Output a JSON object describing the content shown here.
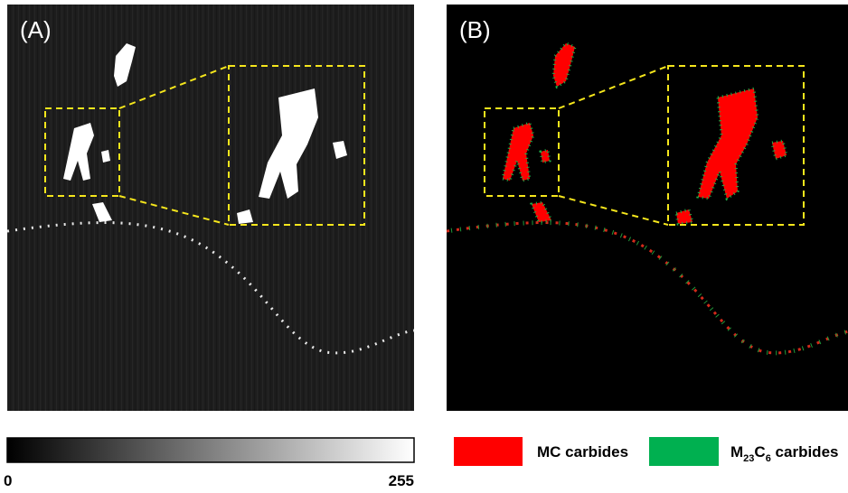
{
  "panels": [
    {
      "label": "(A)"
    },
    {
      "label": "(B)"
    }
  ],
  "colorbar": {
    "min": 0,
    "max": 255
  },
  "legend": [
    {
      "parts": [
        "MC carbides"
      ]
    },
    {
      "parts": [
        "M",
        "23",
        "C",
        "6",
        " carbides"
      ]
    }
  ]
}
